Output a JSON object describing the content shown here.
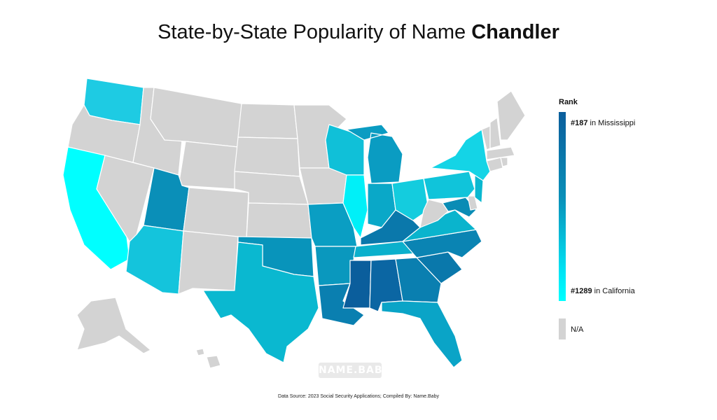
{
  "title": {
    "prefix": "State-by-State Popularity of Name ",
    "name": "Chandler"
  },
  "legend": {
    "title": "Rank",
    "top_rank": "#187",
    "top_state_text": " in Mississippi",
    "bottom_rank": "#1289",
    "bottom_state_text": " in California",
    "na_label": "N/A",
    "color_high": "#0b5e9c",
    "color_low": "#00ffff",
    "color_na": "#d3d3d3"
  },
  "watermark": "NAME.BABY",
  "source": "Data Source: 2023 Social Security Applications; Compiled By: Name.Baby",
  "states": [
    {
      "name": "Washington",
      "color": "#1ecbe3"
    },
    {
      "name": "Oregon",
      "color": "#d3d3d3"
    },
    {
      "name": "California",
      "color": "#00ffff"
    },
    {
      "name": "Idaho",
      "color": "#d3d3d3"
    },
    {
      "name": "Nevada",
      "color": "#d3d3d3"
    },
    {
      "name": "Montana",
      "color": "#d3d3d3"
    },
    {
      "name": "Wyoming",
      "color": "#d3d3d3"
    },
    {
      "name": "Utah",
      "color": "#0a8fb8"
    },
    {
      "name": "Arizona",
      "color": "#14c4dc"
    },
    {
      "name": "Colorado",
      "color": "#d3d3d3"
    },
    {
      "name": "New Mexico",
      "color": "#d3d3d3"
    },
    {
      "name": "North Dakota",
      "color": "#d3d3d3"
    },
    {
      "name": "South Dakota",
      "color": "#d3d3d3"
    },
    {
      "name": "Nebraska",
      "color": "#d3d3d3"
    },
    {
      "name": "Kansas",
      "color": "#d3d3d3"
    },
    {
      "name": "Oklahoma",
      "color": "#0894bb"
    },
    {
      "name": "Texas",
      "color": "#0ab8d0"
    },
    {
      "name": "Minnesota",
      "color": "#d3d3d3"
    },
    {
      "name": "Iowa",
      "color": "#d3d3d3"
    },
    {
      "name": "Missouri",
      "color": "#0a9ec3"
    },
    {
      "name": "Arkansas",
      "color": "#0a98be"
    },
    {
      "name": "Louisiana",
      "color": "#0a7fb0"
    },
    {
      "name": "Wisconsin",
      "color": "#10c0d8"
    },
    {
      "name": "Illinois",
      "color": "#00f0f8"
    },
    {
      "name": "Michigan",
      "color": "#0a9cc2"
    },
    {
      "name": "Indiana",
      "color": "#0aa8c8"
    },
    {
      "name": "Ohio",
      "color": "#14ccde"
    },
    {
      "name": "Kentucky",
      "color": "#0a78ab"
    },
    {
      "name": "Tennessee",
      "color": "#0ab0cc"
    },
    {
      "name": "Mississippi",
      "color": "#0b5e9c"
    },
    {
      "name": "Alabama",
      "color": "#0b66a3"
    },
    {
      "name": "Georgia",
      "color": "#0a7fb0"
    },
    {
      "name": "Florida",
      "color": "#0aa4c7"
    },
    {
      "name": "South Carolina",
      "color": "#0a78ab"
    },
    {
      "name": "North Carolina",
      "color": "#0a84b3"
    },
    {
      "name": "Virginia",
      "color": "#0ab4cd"
    },
    {
      "name": "West Virginia",
      "color": "#d3d3d3"
    },
    {
      "name": "Maryland",
      "color": "#0a8cb5"
    },
    {
      "name": "Delaware",
      "color": "#d3d3d3"
    },
    {
      "name": "Pennsylvania",
      "color": "#10c4da"
    },
    {
      "name": "New Jersey",
      "color": "#0ab8d0"
    },
    {
      "name": "New York",
      "color": "#14d4e6"
    },
    {
      "name": "Connecticut",
      "color": "#d3d3d3"
    },
    {
      "name": "Rhode Island",
      "color": "#d3d3d3"
    },
    {
      "name": "Massachusetts",
      "color": "#d3d3d3"
    },
    {
      "name": "Vermont",
      "color": "#d3d3d3"
    },
    {
      "name": "New Hampshire",
      "color": "#d3d3d3"
    },
    {
      "name": "Maine",
      "color": "#d3d3d3"
    },
    {
      "name": "Alaska",
      "color": "#d3d3d3"
    },
    {
      "name": "Hawaii",
      "color": "#d3d3d3"
    }
  ]
}
